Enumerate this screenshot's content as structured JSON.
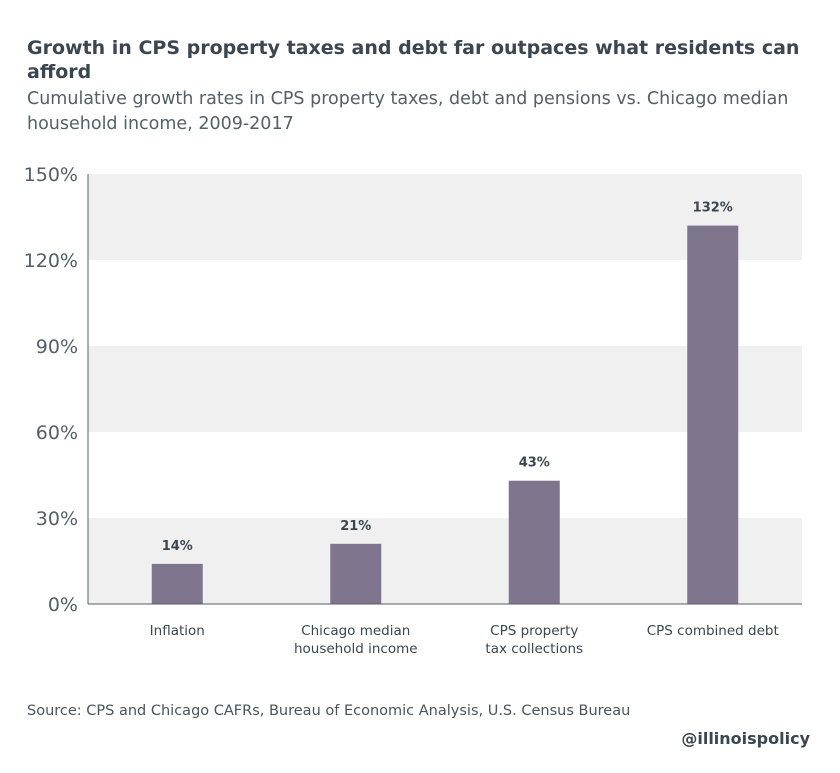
{
  "header": {
    "title": "Growth in CPS property taxes and debt far outpaces what residents can afford",
    "subtitle": "Cumulative growth rates in CPS property taxes, debt and pensions vs. Chicago median household income, 2009-2017"
  },
  "chart_data": {
    "type": "bar",
    "categories": [
      [
        "Inflation"
      ],
      [
        "Chicago median",
        "household income"
      ],
      [
        "CPS property",
        "tax collections"
      ],
      [
        "CPS combined debt"
      ]
    ],
    "values": [
      14,
      21,
      43,
      132
    ],
    "data_labels": [
      "14%",
      "21%",
      "43%",
      "132%"
    ],
    "yticks": [
      0,
      30,
      60,
      90,
      120,
      150
    ],
    "ytick_labels": [
      "0%",
      "30%",
      "60%",
      "90%",
      "120%",
      "150%"
    ],
    "ylim": [
      0,
      150
    ],
    "grid": "alternating bands",
    "colors": {
      "bar": "#7f758c",
      "band": "#f0f0f0",
      "axis": "#555f68",
      "text": "#3b4650"
    }
  },
  "footer": {
    "source": "Source: CPS and Chicago CAFRs, Bureau of Economic Analysis, U.S. Census Bureau",
    "handle": "@illinoispolicy"
  }
}
